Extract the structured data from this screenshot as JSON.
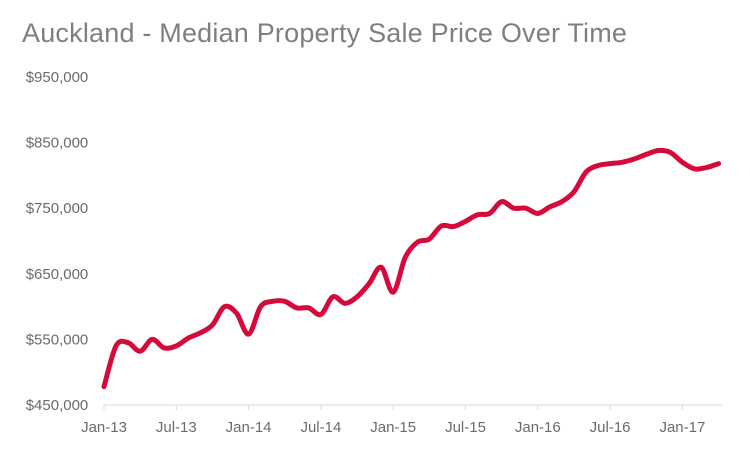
{
  "chart_data": {
    "type": "line",
    "title": "Auckland - Median Property Sale Price Over Time",
    "xlabel": "",
    "ylabel": "",
    "ylim": [
      450000,
      950000
    ],
    "y_ticks": [
      450000,
      550000,
      650000,
      750000,
      850000,
      950000
    ],
    "y_tick_labels": [
      "$450,000",
      "$550,000",
      "$650,000",
      "$750,000",
      "$850,000",
      "$950,000"
    ],
    "x_tick_labels": [
      "Jan-13",
      "Jul-13",
      "Jan-14",
      "Jul-14",
      "Jan-15",
      "Jul-15",
      "Jan-16",
      "Jul-16",
      "Jan-17"
    ],
    "x_tick_months": [
      0,
      6,
      12,
      18,
      24,
      30,
      36,
      42,
      48
    ],
    "xlim_months": [
      0,
      51
    ],
    "line_color": "#d6093b",
    "series": [
      {
        "name": "Median Property Sale Price",
        "x_months": [
          0,
          1,
          2,
          3,
          4,
          5,
          6,
          7,
          8,
          9,
          10,
          11,
          12,
          13,
          14,
          15,
          16,
          17,
          18,
          19,
          20,
          21,
          22,
          23,
          24,
          25,
          26,
          27,
          28,
          29,
          30,
          31,
          32,
          33,
          34,
          35,
          36,
          37,
          38,
          39,
          40,
          41,
          42,
          43,
          44,
          45,
          46,
          47,
          48,
          49,
          50,
          51
        ],
        "values": [
          478000,
          540000,
          545000,
          532000,
          550000,
          537000,
          540000,
          552000,
          560000,
          572000,
          600000,
          590000,
          558000,
          600000,
          608000,
          608000,
          598000,
          598000,
          588000,
          615000,
          605000,
          615000,
          635000,
          660000,
          622000,
          675000,
          698000,
          703000,
          723000,
          722000,
          730000,
          740000,
          742000,
          760000,
          750000,
          750000,
          742000,
          752000,
          760000,
          775000,
          805000,
          815000,
          818000,
          820000,
          825000,
          832000,
          838000,
          835000,
          820000,
          810000,
          812000,
          818000
        ]
      }
    ]
  }
}
